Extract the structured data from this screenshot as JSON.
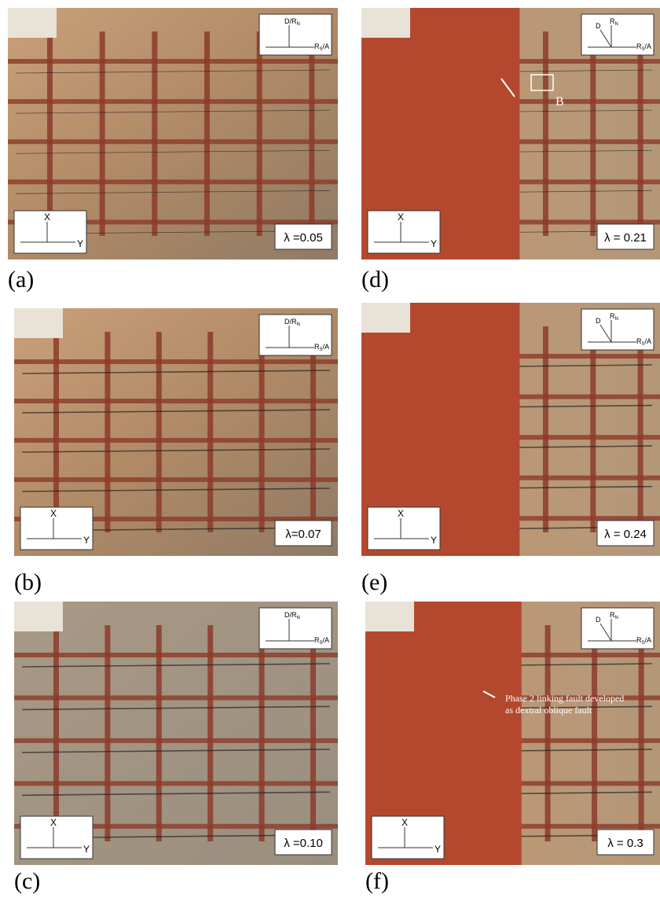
{
  "panels": [
    {
      "label": "(a)",
      "lambda": "λ =0.05",
      "inset": {
        "vertical": "D/R",
        "vertical_sub": "N",
        "horizontal": "R",
        "horizontal_sub": "S",
        "horizontal_tail": "/A"
      },
      "axes": {
        "x": "X",
        "y": "Y"
      }
    },
    {
      "label": "(b)",
      "lambda": "λ=0.07",
      "inset": {
        "vertical": "D/R",
        "vertical_sub": "N",
        "horizontal": "R",
        "horizontal_sub": "S",
        "horizontal_tail": "/A"
      },
      "axes": {
        "x": "X",
        "y": "Y"
      }
    },
    {
      "label": "(c)",
      "lambda": "λ =0.10",
      "inset": {
        "vertical": "D/R",
        "vertical_sub": "N",
        "horizontal": "R",
        "horizontal_sub": "S",
        "horizontal_tail": "/A"
      },
      "axes": {
        "x": "X",
        "y": "Y"
      }
    },
    {
      "label": "(d)",
      "lambda": "λ = 0.21",
      "inset": {
        "oblique": "D",
        "vertical": "R",
        "vertical_sub": "N",
        "horizontal": "R",
        "horizontal_sub": "S",
        "horizontal_tail": "/A"
      },
      "axes": {
        "x": "X",
        "y": "Y"
      },
      "marker": "B"
    },
    {
      "label": "(e)",
      "lambda": "λ = 0.24",
      "inset": {
        "oblique": "D",
        "vertical": "R",
        "vertical_sub": "N",
        "horizontal": "R",
        "horizontal_sub": "S",
        "horizontal_tail": "/A"
      },
      "axes": {
        "x": "X",
        "y": "Y"
      }
    },
    {
      "label": "(f)",
      "lambda": "λ = 0.3",
      "inset": {
        "oblique": "D",
        "vertical": "R",
        "vertical_sub": "N",
        "horizontal": "R",
        "horizontal_sub": "S",
        "horizontal_tail": "/A"
      },
      "axes": {
        "x": "X",
        "y": "Y"
      },
      "annotation": [
        "Phase 2  linking fault developed",
        "as dextral oblique fault"
      ]
    }
  ]
}
